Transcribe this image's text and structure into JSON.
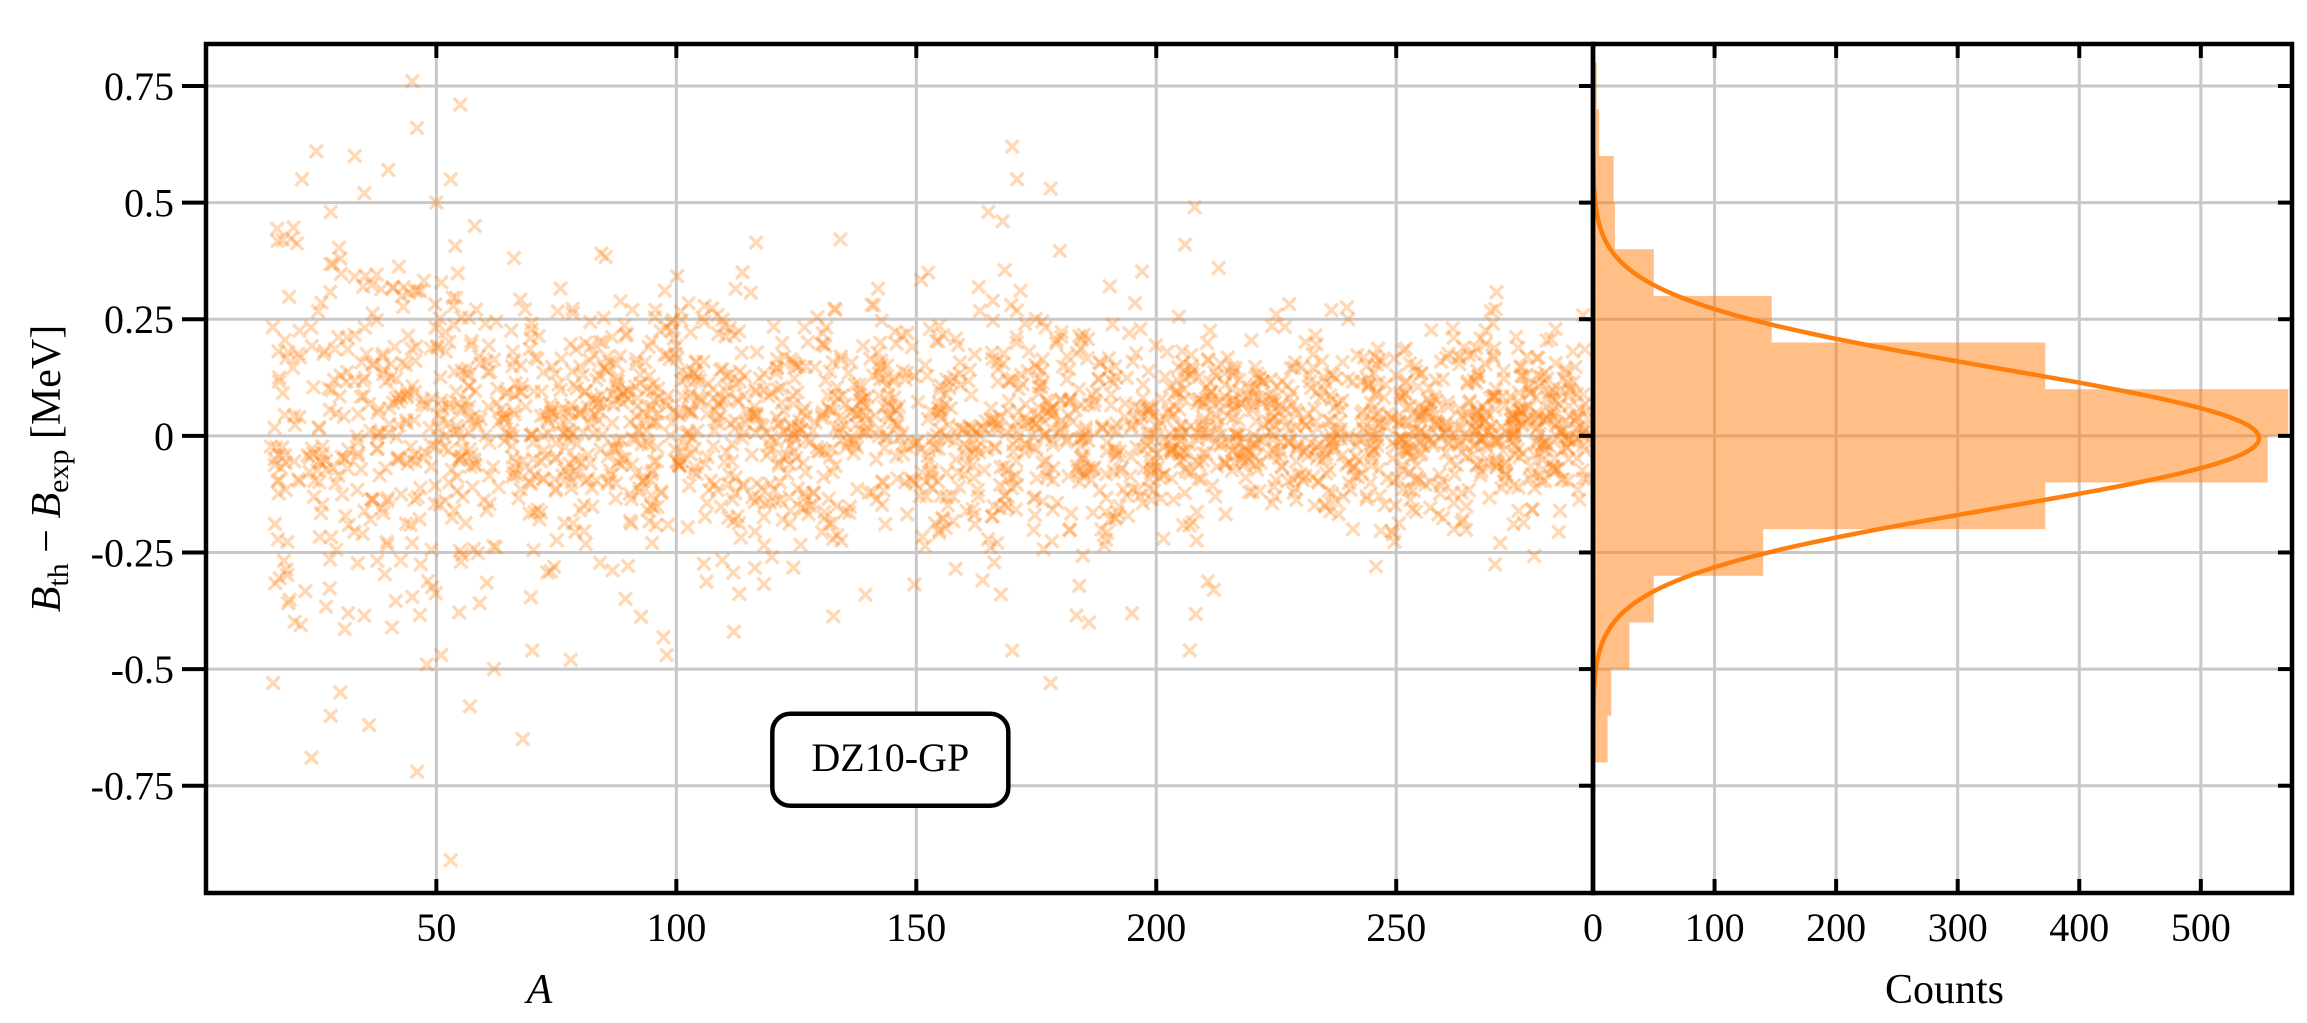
{
  "chart_data": [
    {
      "type": "scatter",
      "panel": "main",
      "xlabel": "A",
      "ylabel_parts": {
        "b1": "B",
        "sub1": "th",
        "minus": " − ",
        "b2": "B",
        "sub2": "exp",
        "unit": " [MeV]"
      },
      "xlim": [
        2,
        291
      ],
      "ylim": [
        -0.98,
        0.84
      ],
      "xticks": [
        50,
        100,
        150,
        200,
        250
      ],
      "yticks": [
        0.75,
        0.5,
        0.25,
        0,
        -0.25,
        -0.5,
        -0.75
      ],
      "ytick_labels": [
        "0.75",
        "0.5",
        "0.25",
        "0",
        "-0.25",
        "-0.5",
        "-0.75"
      ],
      "grid": true,
      "marker": "x",
      "color": "#ff7f0e",
      "annotation": "DZ10-GP",
      "annotation_position": {
        "x": 120,
        "y": -0.72
      },
      "points_note": "approximately 2300 residual points spread over A = 15-290",
      "points": [
        [
          18,
          0.42
        ],
        [
          22,
          0.55
        ],
        [
          25,
          0.61
        ],
        [
          28,
          0.48
        ],
        [
          30,
          0.38
        ],
        [
          33,
          0.6
        ],
        [
          35,
          0.52
        ],
        [
          40,
          0.57
        ],
        [
          45,
          0.76
        ],
        [
          46,
          0.66
        ],
        [
          55,
          0.71
        ],
        [
          53,
          0.55
        ],
        [
          50,
          0.5
        ],
        [
          58,
          0.45
        ],
        [
          170,
          0.62
        ],
        [
          171,
          0.55
        ],
        [
          168,
          0.46
        ],
        [
          165,
          0.48
        ],
        [
          178,
          0.53
        ],
        [
          208,
          0.49
        ],
        [
          213,
          0.36
        ],
        [
          206,
          0.41
        ],
        [
          225,
          0.26
        ],
        [
          240,
          0.25
        ],
        [
          16,
          -0.53
        ],
        [
          24,
          -0.69
        ],
        [
          28,
          -0.6
        ],
        [
          30,
          -0.55
        ],
        [
          36,
          -0.62
        ],
        [
          46,
          -0.72
        ],
        [
          53,
          -0.91
        ],
        [
          57,
          -0.58
        ],
        [
          68,
          -0.65
        ],
        [
          48,
          -0.49
        ],
        [
          51,
          -0.47
        ],
        [
          62,
          -0.5
        ],
        [
          70,
          -0.46
        ],
        [
          78,
          -0.48
        ],
        [
          98,
          -0.47
        ],
        [
          112,
          -0.42
        ],
        [
          170,
          -0.46
        ],
        [
          178,
          -0.53
        ],
        [
          186,
          -0.4
        ],
        [
          207,
          -0.46
        ],
        [
          212,
          -0.33
        ],
        [
          241,
          -0.2
        ],
        [
          262,
          -0.2
        ]
      ]
    },
    {
      "type": "bar",
      "panel": "histogram",
      "orientation": "horizontal",
      "xlabel": "Counts",
      "xlim": [
        0,
        575
      ],
      "ylim": [
        -0.98,
        0.84
      ],
      "xticks": [
        0,
        100,
        200,
        300,
        400,
        500
      ],
      "bins": [
        {
          "y0": -0.7,
          "y1": -0.6,
          "count": 12
        },
        {
          "y0": -0.6,
          "y1": -0.5,
          "count": 15
        },
        {
          "y0": -0.5,
          "y1": -0.4,
          "count": 30
        },
        {
          "y0": -0.4,
          "y1": -0.3,
          "count": 50
        },
        {
          "y0": -0.3,
          "y1": -0.2,
          "count": 140
        },
        {
          "y0": -0.2,
          "y1": -0.1,
          "count": 372
        },
        {
          "y0": -0.1,
          "y1": 0.0,
          "count": 555
        },
        {
          "y0": 0.0,
          "y1": 0.1,
          "count": 572
        },
        {
          "y0": 0.1,
          "y1": 0.2,
          "count": 372
        },
        {
          "y0": 0.2,
          "y1": 0.3,
          "count": 147
        },
        {
          "y0": 0.3,
          "y1": 0.4,
          "count": 50
        },
        {
          "y0": 0.4,
          "y1": 0.5,
          "count": 18
        },
        {
          "y0": 0.5,
          "y1": 0.6,
          "count": 17
        },
        {
          "y0": 0.6,
          "y1": 0.7,
          "count": 5
        },
        {
          "y0": 0.7,
          "y1": 0.8,
          "count": 3
        }
      ],
      "gaussian_fit": {
        "amplitude": 548,
        "mean": -0.005,
        "sigma": 0.15
      },
      "color": "#ff7f0e"
    }
  ]
}
